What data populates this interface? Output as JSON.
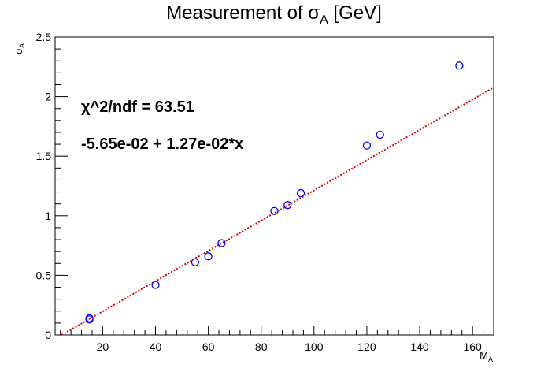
{
  "chart_data": {
    "type": "scatter",
    "title": "Measurement of σ_A [GeV]",
    "title_parts": {
      "main": "Measurement of ",
      "symbol": "σ",
      "sub": "A",
      "after": " [GeV]"
    },
    "xlabel": "M_A",
    "xlabel_parts": {
      "main": "M",
      "sub": "A"
    },
    "ylabel": "σ_A",
    "ylabel_parts": {
      "main": "σ",
      "sub": "A"
    },
    "xlim": [
      2,
      168
    ],
    "ylim": [
      0,
      2.5
    ],
    "xticks": [
      20,
      40,
      60,
      80,
      100,
      120,
      140,
      160
    ],
    "xtick_labels": [
      "20",
      "40",
      "60",
      "80",
      "100",
      "120",
      "140",
      "160"
    ],
    "yticks": [
      0,
      0.5,
      1,
      1.5,
      2,
      2.5
    ],
    "ytick_labels": [
      "0",
      "0.5",
      "1",
      "1.5",
      "2",
      "2.5"
    ],
    "grid": false,
    "legend": "none",
    "series": [
      {
        "marker": "open-circle",
        "color": "#0000ff",
        "points": [
          {
            "x": 15,
            "y": 0.14
          },
          {
            "x": 15,
            "y": 0.13
          },
          {
            "x": 40,
            "y": 0.42
          },
          {
            "x": 55,
            "y": 0.61
          },
          {
            "x": 60,
            "y": 0.66
          },
          {
            "x": 65,
            "y": 0.77
          },
          {
            "x": 85,
            "y": 1.04
          },
          {
            "x": 90,
            "y": 1.09
          },
          {
            "x": 95,
            "y": 1.19
          },
          {
            "x": 120,
            "y": 1.59
          },
          {
            "x": 125,
            "y": 1.68
          },
          {
            "x": 155,
            "y": 2.26
          }
        ]
      }
    ],
    "fit": {
      "style": "dotted",
      "color": "#dd0000",
      "intercept": -0.0565,
      "slope": 0.0127
    },
    "annotations": {
      "chi2": "χ^2/ndf = 63.51",
      "formula": "-5.65e-02 + 1.27e-02*x"
    }
  }
}
